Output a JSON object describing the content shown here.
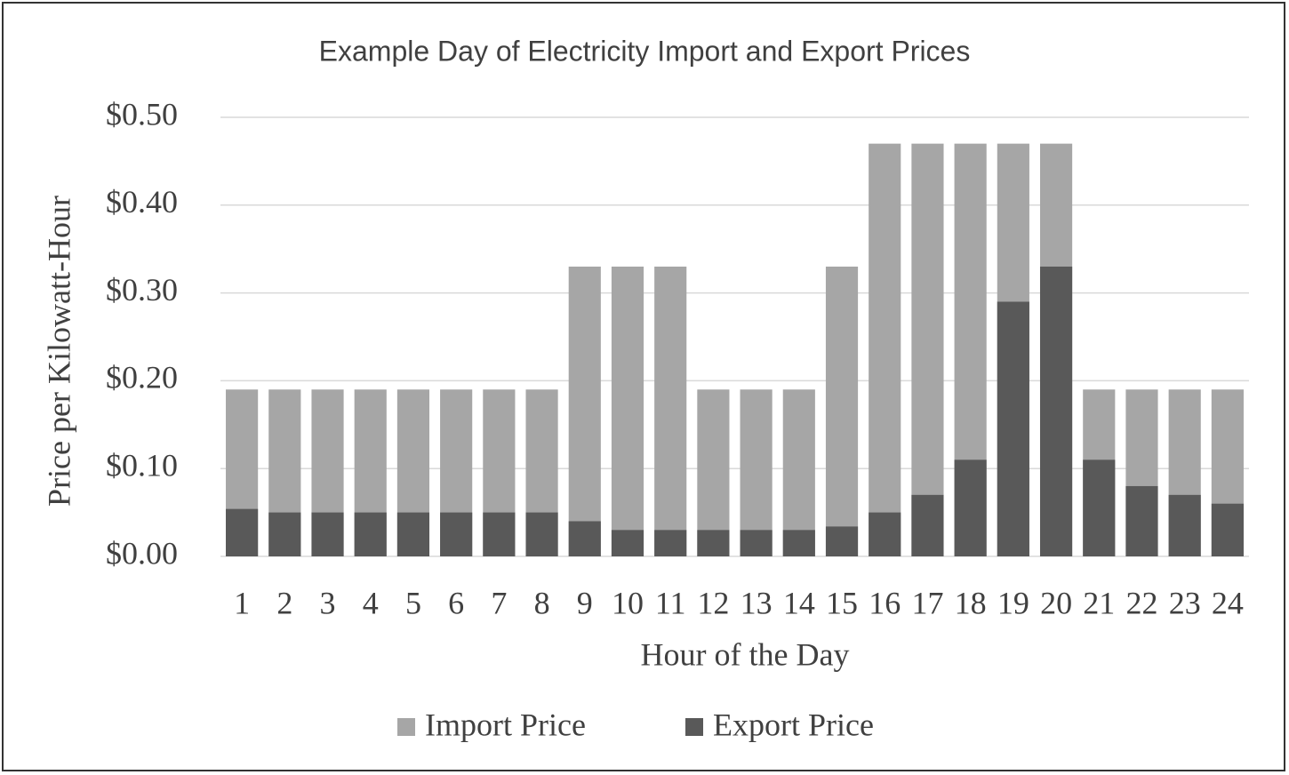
{
  "chart_data": {
    "type": "bar",
    "title": "Example Day of Electricity  Import and Export Prices",
    "x_label": "Hour of the Day",
    "y_label": "Price per Kilowatt-Hour",
    "categories": [
      "1",
      "2",
      "3",
      "4",
      "5",
      "6",
      "7",
      "8",
      "9",
      "10",
      "11",
      "12",
      "13",
      "14",
      "15",
      "16",
      "17",
      "18",
      "19",
      "20",
      "21",
      "22",
      "23",
      "24"
    ],
    "series": [
      {
        "name": "Import Price",
        "color": "#a6a6a6",
        "values": [
          0.19,
          0.19,
          0.19,
          0.19,
          0.19,
          0.19,
          0.19,
          0.19,
          0.33,
          0.33,
          0.33,
          0.19,
          0.19,
          0.19,
          0.33,
          0.47,
          0.47,
          0.47,
          0.47,
          0.47,
          0.19,
          0.19,
          0.19,
          0.19
        ]
      },
      {
        "name": "Export Price",
        "color": "#595959",
        "values": [
          0.054,
          0.05,
          0.05,
          0.05,
          0.05,
          0.05,
          0.05,
          0.05,
          0.04,
          0.03,
          0.03,
          0.03,
          0.03,
          0.03,
          0.034,
          0.05,
          0.07,
          0.11,
          0.29,
          0.33,
          0.11,
          0.08,
          0.07,
          0.06
        ]
      }
    ],
    "ylim": [
      0,
      0.5
    ],
    "yticks": [
      {
        "value": 0,
        "label": "$0.00"
      },
      {
        "value": 0.1,
        "label": "$0.10"
      },
      {
        "value": 0.2,
        "label": "$0.20"
      },
      {
        "value": 0.3,
        "label": "$0.30"
      },
      {
        "value": 0.4,
        "label": "$0.40"
      },
      {
        "value": 0.5,
        "label": "$0.50"
      }
    ],
    "grid": true,
    "legend": "bottom"
  }
}
